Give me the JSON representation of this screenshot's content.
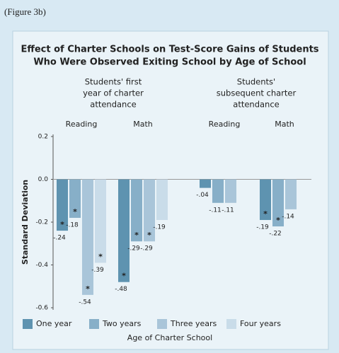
{
  "figure_label": "(Figure 3b)",
  "chart_data": {
    "type": "bar",
    "title": [
      "Effect of Charter Schools on Test-Score Gains of Students",
      "Who Were Observed Exiting School by Age of School"
    ],
    "group_headers": [
      [
        "Students' first",
        "year of charter",
        "attendance"
      ],
      [
        "Students'",
        "subsequent charter",
        "attendance"
      ]
    ],
    "categories": [
      "Reading",
      "Math",
      "Reading",
      "Math"
    ],
    "y_label": "Standard Deviation",
    "x_label": "Age of Charter School",
    "ylim": [
      -0.6,
      0.2
    ],
    "yticks": [
      0.2,
      {
        "value": 0,
        "label": "0.0"
      },
      -0.2,
      -0.4,
      -0.6
    ],
    "series": [
      {
        "name": "One year",
        "color": "#5e93b0",
        "values": [
          -0.24,
          -0.48,
          -0.04,
          -0.19
        ],
        "value_labels": [
          "-.24",
          "-.48",
          "-.04",
          "-.19"
        ],
        "significance": [
          "*",
          "*",
          null,
          "*"
        ]
      },
      {
        "name": "Two years",
        "color": "#87afc8",
        "values": [
          -0.18,
          -0.29,
          -0.11,
          -0.22
        ],
        "value_labels": [
          "-.18",
          "-.29",
          "-.11",
          "-.22"
        ],
        "significance": [
          "*",
          "*",
          null,
          "*"
        ]
      },
      {
        "name": "Three years",
        "color": "#a9c5d9",
        "values": [
          -0.54,
          -0.29,
          -0.11,
          -0.14
        ],
        "value_labels": [
          "-.54",
          "-.29",
          "-.11",
          "-.14"
        ],
        "significance": [
          "*",
          "*",
          null,
          null
        ]
      },
      {
        "name": "Four years",
        "color": "#c9dce9",
        "values": [
          -0.39,
          -0.19,
          null,
          null
        ],
        "value_labels": [
          "-.39",
          "-.19",
          null,
          null
        ],
        "significance": [
          "*",
          null,
          null,
          null
        ]
      }
    ]
  }
}
